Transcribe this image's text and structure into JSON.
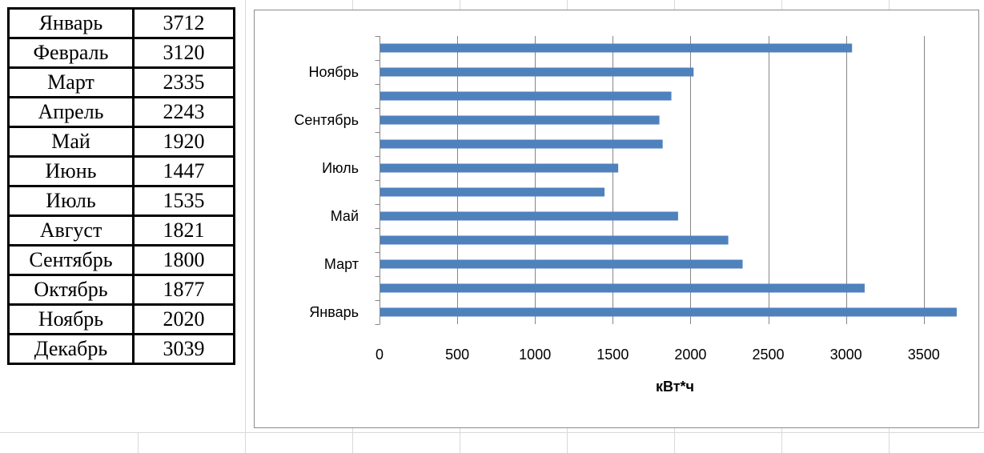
{
  "table": {
    "rows": [
      {
        "month": "Январь",
        "value": "3712"
      },
      {
        "month": "Февраль",
        "value": "3120"
      },
      {
        "month": "Март",
        "value": "2335"
      },
      {
        "month": "Апрель",
        "value": "2243"
      },
      {
        "month": "Май",
        "value": "1920"
      },
      {
        "month": "Июнь",
        "value": "1447"
      },
      {
        "month": "Июль",
        "value": "1535"
      },
      {
        "month": "Август",
        "value": "1821"
      },
      {
        "month": "Сентябрь",
        "value": "1800"
      },
      {
        "month": "Октябрь",
        "value": "1877"
      },
      {
        "month": "Ноябрь",
        "value": "2020"
      },
      {
        "month": "Декабрь",
        "value": "3039"
      }
    ]
  },
  "chart_data": {
    "type": "bar",
    "orientation": "horizontal",
    "categories": [
      "Январь",
      "Февраль",
      "Март",
      "Апрель",
      "Май",
      "Июнь",
      "Июль",
      "Август",
      "Сентябрь",
      "Октябрь",
      "Ноябрь",
      "Декабрь"
    ],
    "category_labels_shown": [
      "Январь",
      "",
      "Март",
      "",
      "Май",
      "",
      "Июль",
      "",
      "Сентябрь",
      "",
      "Ноябрь",
      ""
    ],
    "values": [
      3712,
      3120,
      2335,
      2243,
      1920,
      1447,
      1535,
      1821,
      1800,
      1877,
      2020,
      3039
    ],
    "xlabel": "кВт*ч",
    "xlim": [
      0,
      3800
    ],
    "xticks": [
      0,
      500,
      1000,
      1500,
      2000,
      2500,
      3000,
      3500
    ],
    "grid": "vertical",
    "legend": "none",
    "bar_color": "#4f81bd",
    "grid_color": "#868686"
  }
}
